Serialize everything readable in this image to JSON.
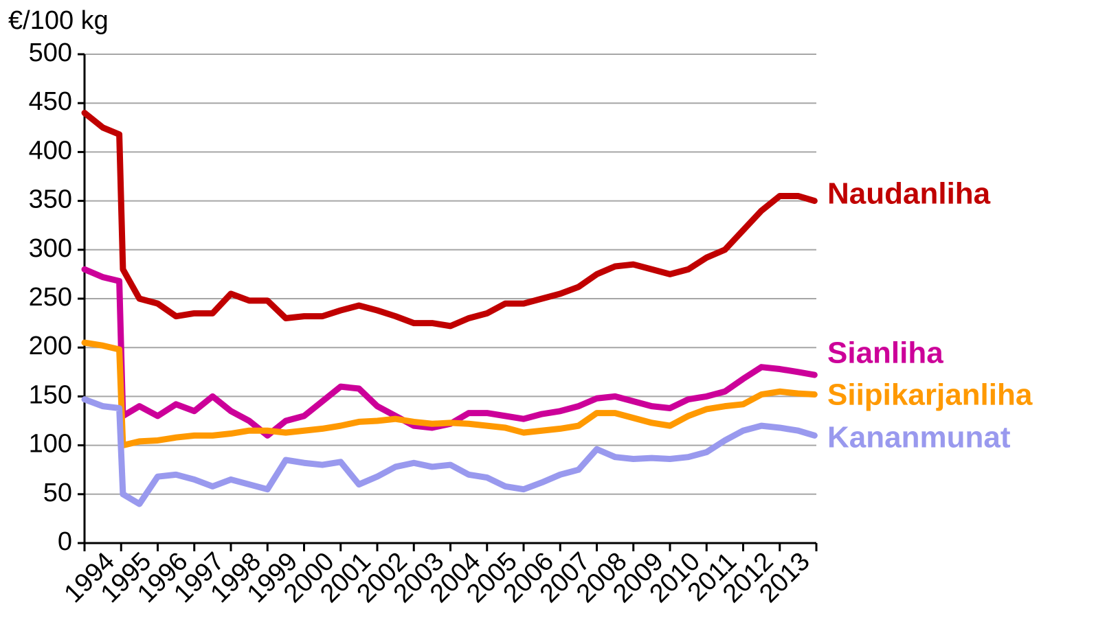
{
  "chart_data": {
    "type": "line",
    "y_label": "€/100 kg",
    "x": [
      1994,
      1994.5,
      1994.95,
      1995.05,
      1995.5,
      1996,
      1996.5,
      1997,
      1997.5,
      1998,
      1998.5,
      1999,
      1999.5,
      2000,
      2000.5,
      2001,
      2001.5,
      2002,
      2002.5,
      2003,
      2003.5,
      2004,
      2004.5,
      2005,
      2005.5,
      2006,
      2006.5,
      2007,
      2007.5,
      2008,
      2008.5,
      2009,
      2009.5,
      2010,
      2010.5,
      2011,
      2011.5,
      2012,
      2012.5,
      2013,
      2013.5,
      2013.95
    ],
    "series": [
      {
        "name": "Naudanliha",
        "color": "#c00000",
        "values": [
          440,
          425,
          418,
          280,
          250,
          245,
          232,
          235,
          235,
          255,
          248,
          248,
          230,
          232,
          232,
          238,
          243,
          238,
          232,
          225,
          225,
          222,
          230,
          235,
          245,
          245,
          250,
          255,
          262,
          275,
          283,
          285,
          280,
          275,
          280,
          292,
          300,
          320,
          340,
          355,
          355,
          350
        ]
      },
      {
        "name": "Sianliha",
        "color": "#cc0099",
        "values": [
          280,
          272,
          268,
          130,
          140,
          130,
          142,
          135,
          150,
          135,
          125,
          110,
          125,
          130,
          145,
          160,
          158,
          140,
          130,
          120,
          118,
          122,
          133,
          133,
          130,
          127,
          132,
          135,
          140,
          148,
          150,
          145,
          140,
          138,
          147,
          150,
          155,
          168,
          180,
          178,
          175,
          172
        ]
      },
      {
        "name": "Siipikarjanliha",
        "color": "#ff9900",
        "values": [
          205,
          202,
          198,
          100,
          104,
          105,
          108,
          110,
          110,
          112,
          115,
          115,
          113,
          115,
          117,
          120,
          124,
          125,
          127,
          124,
          122,
          123,
          122,
          120,
          118,
          113,
          115,
          117,
          120,
          133,
          133,
          128,
          123,
          120,
          130,
          137,
          140,
          142,
          152,
          155,
          153,
          152
        ]
      },
      {
        "name": "Kananmunat",
        "color": "#9999ee",
        "values": [
          147,
          140,
          138,
          50,
          40,
          68,
          70,
          65,
          58,
          65,
          60,
          55,
          85,
          82,
          80,
          83,
          60,
          68,
          78,
          82,
          78,
          80,
          70,
          67,
          58,
          55,
          62,
          70,
          75,
          96,
          88,
          86,
          87,
          86,
          88,
          93,
          105,
          115,
          120,
          118,
          115,
          110
        ]
      }
    ],
    "xlim": [
      1994,
      2014
    ],
    "xticks": [
      1994,
      1995,
      1996,
      1997,
      1998,
      1999,
      2000,
      2001,
      2002,
      2003,
      2004,
      2005,
      2006,
      2007,
      2008,
      2009,
      2010,
      2011,
      2012,
      2013
    ],
    "ylim": [
      0,
      500
    ],
    "yticks": [
      0,
      50,
      100,
      150,
      200,
      250,
      300,
      350,
      400,
      450,
      500
    ],
    "grid": true
  }
}
